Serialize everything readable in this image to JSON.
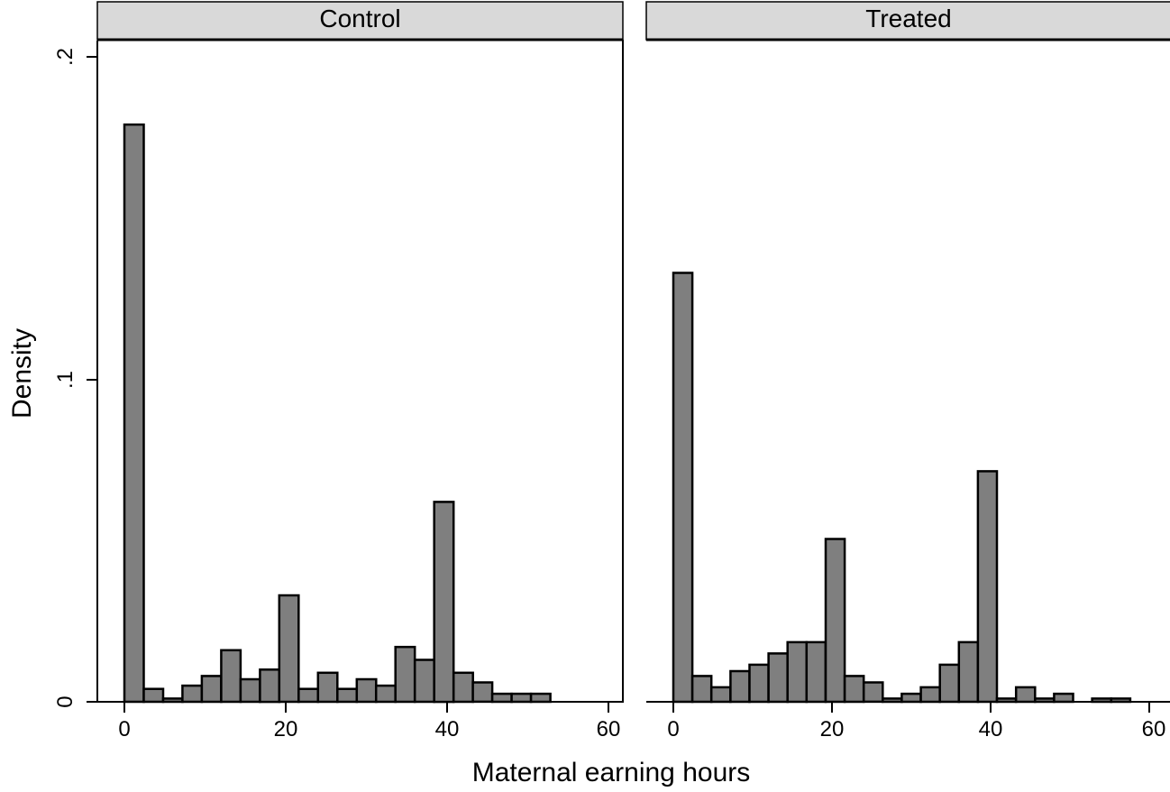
{
  "chart_data": {
    "type": "bar",
    "xlabel": "Maternal earning hours",
    "ylabel": "Density",
    "xlim": [
      -3.6,
      61.5
    ],
    "ylim": [
      0,
      0.2
    ],
    "x_ticks": [
      "0",
      "20",
      "40",
      "60"
    ],
    "y_ticks": [
      "0",
      ".1",
      ".2"
    ],
    "bar_color": "#7f7f7f",
    "panels": [
      {
        "title": "Control",
        "bins": [
          {
            "x0": 0.0,
            "x1": 2.4,
            "y": 0.179
          },
          {
            "x0": 2.4,
            "x1": 4.8,
            "y": 0.004
          },
          {
            "x0": 4.8,
            "x1": 7.2,
            "y": 0.001
          },
          {
            "x0": 7.2,
            "x1": 9.6,
            "y": 0.005
          },
          {
            "x0": 9.6,
            "x1": 12.0,
            "y": 0.008
          },
          {
            "x0": 12.0,
            "x1": 14.4,
            "y": 0.016
          },
          {
            "x0": 14.4,
            "x1": 16.8,
            "y": 0.007
          },
          {
            "x0": 16.8,
            "x1": 19.2,
            "y": 0.01
          },
          {
            "x0": 19.2,
            "x1": 21.6,
            "y": 0.033
          },
          {
            "x0": 21.6,
            "x1": 24.0,
            "y": 0.004
          },
          {
            "x0": 24.0,
            "x1": 26.4,
            "y": 0.009
          },
          {
            "x0": 26.4,
            "x1": 28.8,
            "y": 0.004
          },
          {
            "x0": 28.8,
            "x1": 31.2,
            "y": 0.007
          },
          {
            "x0": 31.2,
            "x1": 33.6,
            "y": 0.005
          },
          {
            "x0": 33.6,
            "x1": 36.0,
            "y": 0.017
          },
          {
            "x0": 36.0,
            "x1": 38.4,
            "y": 0.013
          },
          {
            "x0": 38.4,
            "x1": 40.8,
            "y": 0.062
          },
          {
            "x0": 40.8,
            "x1": 43.2,
            "y": 0.009
          },
          {
            "x0": 43.2,
            "x1": 45.6,
            "y": 0.006
          },
          {
            "x0": 45.6,
            "x1": 48.0,
            "y": 0.0025
          },
          {
            "x0": 48.0,
            "x1": 50.4,
            "y": 0.0025
          },
          {
            "x0": 50.4,
            "x1": 52.8,
            "y": 0.0025
          }
        ]
      },
      {
        "title": "Treated",
        "bins": [
          {
            "x0": 0.0,
            "x1": 2.4,
            "y": 0.133
          },
          {
            "x0": 2.4,
            "x1": 4.8,
            "y": 0.008
          },
          {
            "x0": 4.8,
            "x1": 7.2,
            "y": 0.0045
          },
          {
            "x0": 7.2,
            "x1": 9.6,
            "y": 0.0095
          },
          {
            "x0": 9.6,
            "x1": 12.0,
            "y": 0.0115
          },
          {
            "x0": 12.0,
            "x1": 14.4,
            "y": 0.015
          },
          {
            "x0": 14.4,
            "x1": 16.8,
            "y": 0.0185
          },
          {
            "x0": 16.8,
            "x1": 19.2,
            "y": 0.0185
          },
          {
            "x0": 19.2,
            "x1": 21.6,
            "y": 0.0505
          },
          {
            "x0": 21.6,
            "x1": 24.0,
            "y": 0.008
          },
          {
            "x0": 24.0,
            "x1": 26.4,
            "y": 0.006
          },
          {
            "x0": 26.4,
            "x1": 28.8,
            "y": 0.001
          },
          {
            "x0": 28.8,
            "x1": 31.2,
            "y": 0.0025
          },
          {
            "x0": 31.2,
            "x1": 33.6,
            "y": 0.0045
          },
          {
            "x0": 33.6,
            "x1": 36.0,
            "y": 0.0115
          },
          {
            "x0": 36.0,
            "x1": 38.4,
            "y": 0.0185
          },
          {
            "x0": 38.4,
            "x1": 40.8,
            "y": 0.0715
          },
          {
            "x0": 40.8,
            "x1": 43.2,
            "y": 0.001
          },
          {
            "x0": 43.2,
            "x1": 45.6,
            "y": 0.0045
          },
          {
            "x0": 45.6,
            "x1": 48.0,
            "y": 0.001
          },
          {
            "x0": 48.0,
            "x1": 50.4,
            "y": 0.0025
          },
          {
            "x0": 52.8,
            "x1": 55.2,
            "y": 0.001
          },
          {
            "x0": 55.2,
            "x1": 57.6,
            "y": 0.001
          }
        ]
      }
    ]
  }
}
